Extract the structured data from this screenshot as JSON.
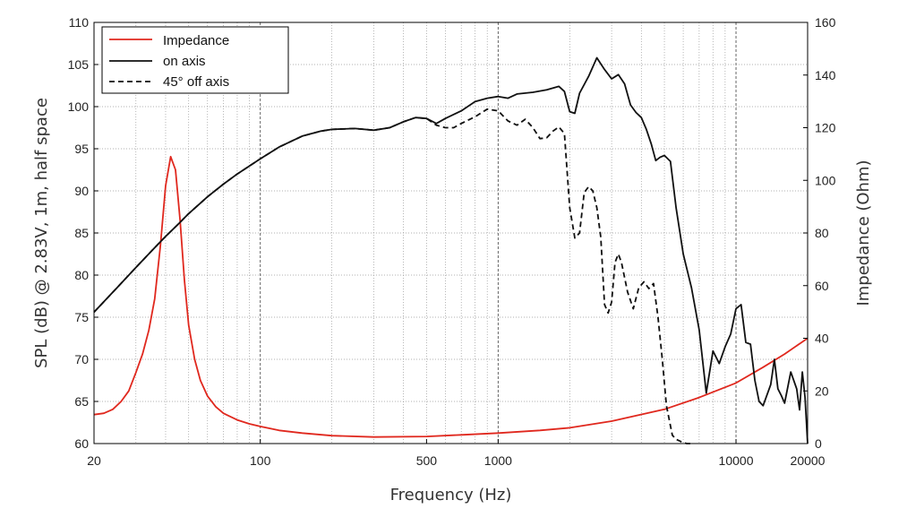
{
  "chart_data": {
    "type": "line",
    "title": "",
    "xlabel": "Frequency (Hz)",
    "ylabel": "SPL (dB) @ 2.83V, 1m, half space",
    "y2label": "Impedance (Ohm)",
    "xscale": "log",
    "xlim": [
      20,
      20000
    ],
    "ylim": [
      60,
      110
    ],
    "y2lim": [
      0,
      160
    ],
    "grid": true,
    "legend_position": "top-left",
    "x_tick_labels": [
      "20",
      "100",
      "500",
      "1000",
      "10000",
      "20000"
    ],
    "x_tick_values": [
      20,
      100,
      500,
      1000,
      10000,
      20000
    ],
    "y_ticks": [
      60,
      65,
      70,
      75,
      80,
      85,
      90,
      95,
      100,
      105,
      110
    ],
    "y2_ticks": [
      0,
      20,
      40,
      60,
      80,
      100,
      120,
      140,
      160
    ],
    "series": [
      {
        "name": "Impedance",
        "color": "#e0281e",
        "dash": "solid",
        "axis": "right",
        "x": [
          20,
          22,
          24,
          26,
          28,
          30,
          32,
          34,
          36,
          38,
          40,
          42,
          44,
          46,
          48,
          50,
          53,
          56,
          60,
          65,
          70,
          80,
          90,
          100,
          120,
          150,
          200,
          300,
          500,
          700,
          1000,
          1500,
          2000,
          3000,
          5000,
          7000,
          10000,
          13000,
          16000,
          20000
        ],
        "y": [
          11,
          11.5,
          13,
          16,
          20,
          27,
          34,
          43,
          55,
          75,
          98,
          109,
          104,
          85,
          62,
          45,
          32,
          24,
          18,
          14,
          11.5,
          9,
          7.5,
          6.5,
          5,
          4,
          3,
          2.5,
          2.7,
          3.3,
          4,
          5,
          6,
          8.5,
          13,
          17.5,
          23,
          29,
          34,
          40
        ]
      },
      {
        "name": "on axis",
        "color": "#111111",
        "dash": "solid",
        "axis": "left",
        "x": [
          20,
          25,
          30,
          35,
          40,
          45,
          50,
          60,
          70,
          80,
          100,
          120,
          150,
          180,
          200,
          250,
          300,
          350,
          400,
          450,
          500,
          550,
          600,
          700,
          800,
          900,
          1000,
          1100,
          1200,
          1400,
          1600,
          1800,
          1900,
          2000,
          2100,
          2200,
          2400,
          2600,
          2800,
          3000,
          3200,
          3400,
          3600,
          3800,
          4000,
          4200,
          4400,
          4600,
          4800,
          5000,
          5300,
          5600,
          6000,
          6500,
          7000,
          7500,
          8000,
          8500,
          9000,
          9500,
          10000,
          10500,
          11000,
          11500,
          12000,
          12500,
          13000,
          14000,
          14500,
          15000,
          15500,
          16000,
          17000,
          18000,
          18500,
          19000,
          19500,
          20000
        ],
        "y": [
          75.6,
          78.5,
          80.9,
          82.9,
          84.6,
          86,
          87.3,
          89.3,
          90.8,
          92,
          93.8,
          95.2,
          96.5,
          97.1,
          97.3,
          97.4,
          97.2,
          97.5,
          98.2,
          98.7,
          98.6,
          98,
          98.6,
          99.5,
          100.6,
          101,
          101.2,
          101,
          101.5,
          101.7,
          102,
          102.4,
          101.8,
          99.4,
          99.2,
          101.6,
          103.6,
          105.8,
          104.4,
          103.3,
          103.8,
          102.7,
          100.2,
          99.3,
          98.7,
          97.3,
          95.6,
          93.6,
          94,
          94.2,
          93.5,
          88,
          82.5,
          78.5,
          73.5,
          66,
          71,
          69.5,
          71.5,
          73,
          76,
          76.5,
          72,
          71.8,
          67.5,
          65,
          64.5,
          67,
          70,
          66.5,
          65.7,
          64.8,
          68.5,
          66.5,
          64,
          68.5,
          65.5,
          60
        ]
      },
      {
        "name": "45° off axis",
        "color": "#111111",
        "dash": "dashed",
        "axis": "left",
        "x": [
          20,
          25,
          30,
          35,
          40,
          45,
          50,
          60,
          70,
          80,
          100,
          120,
          150,
          180,
          200,
          250,
          300,
          350,
          400,
          450,
          500,
          550,
          600,
          650,
          700,
          800,
          900,
          1000,
          1100,
          1200,
          1300,
          1400,
          1500,
          1600,
          1700,
          1800,
          1900,
          2000,
          2100,
          2200,
          2300,
          2400,
          2500,
          2600,
          2700,
          2800,
          2900,
          3000,
          3100,
          3200,
          3300,
          3500,
          3700,
          3900,
          4100,
          4300,
          4500,
          4700,
          4900,
          5100,
          5400,
          5600,
          5900,
          6200,
          6400,
          6600
        ],
        "y": [
          75.6,
          78.5,
          80.9,
          82.9,
          84.6,
          86,
          87.3,
          89.3,
          90.8,
          92,
          93.8,
          95.2,
          96.5,
          97.1,
          97.3,
          97.4,
          97.2,
          97.5,
          98.2,
          98.7,
          98.6,
          97.8,
          97.5,
          97.5,
          98,
          98.8,
          99.7,
          99.5,
          98.3,
          97.8,
          98.5,
          97.5,
          96.2,
          96.3,
          97.1,
          97.6,
          96.8,
          88,
          84.4,
          85,
          89.8,
          90.5,
          90,
          88,
          84.5,
          76.5,
          75.5,
          76.8,
          81.5,
          82.5,
          81.5,
          78,
          76,
          78.5,
          79.2,
          78.4,
          79,
          75,
          70,
          64.5,
          61,
          60.5,
          60.2,
          60,
          60,
          60
        ]
      }
    ]
  }
}
